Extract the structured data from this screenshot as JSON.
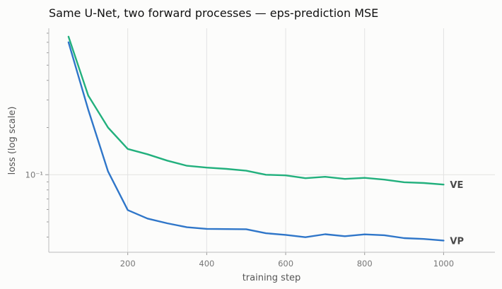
{
  "chart_data": {
    "type": "line",
    "title": "Same U-Net, two forward processes — eps-prediction MSE",
    "xlabel": "training step",
    "ylabel": "loss (log scale)",
    "yscale": "log",
    "grid": "vertical",
    "xlim": [
      0,
      1130
    ],
    "ylim": [
      0.032,
      0.86
    ],
    "x_ticks": [
      200,
      400,
      600,
      800,
      1000
    ],
    "y_major_ticks": [
      0.1
    ],
    "y_major_tick_labels": [
      "10⁻¹"
    ],
    "y_minor_ticks": [
      0.04,
      0.05,
      0.06,
      0.07,
      0.08,
      0.09,
      0.2,
      0.3,
      0.4,
      0.5,
      0.6,
      0.7,
      0.8
    ],
    "x": [
      50,
      100,
      150,
      200,
      250,
      300,
      350,
      400,
      450,
      500,
      550,
      600,
      650,
      700,
      750,
      800,
      850,
      900,
      950,
      1000
    ],
    "series": [
      {
        "name": "VE",
        "color": "#22b07d",
        "values": [
          0.76,
          0.32,
          0.2,
          0.146,
          0.135,
          0.123,
          0.114,
          0.111,
          0.109,
          0.106,
          0.1,
          0.099,
          0.095,
          0.097,
          0.094,
          0.0955,
          0.093,
          0.0895,
          0.0885,
          0.0865
        ]
      },
      {
        "name": "VP",
        "color": "#2f76c9",
        "values": [
          0.7,
          0.26,
          0.105,
          0.0595,
          0.0525,
          0.049,
          0.0462,
          0.0451,
          0.045,
          0.0449,
          0.0423,
          0.0413,
          0.0399,
          0.0417,
          0.0405,
          0.0416,
          0.0411,
          0.0394,
          0.0389,
          0.038
        ]
      }
    ]
  }
}
